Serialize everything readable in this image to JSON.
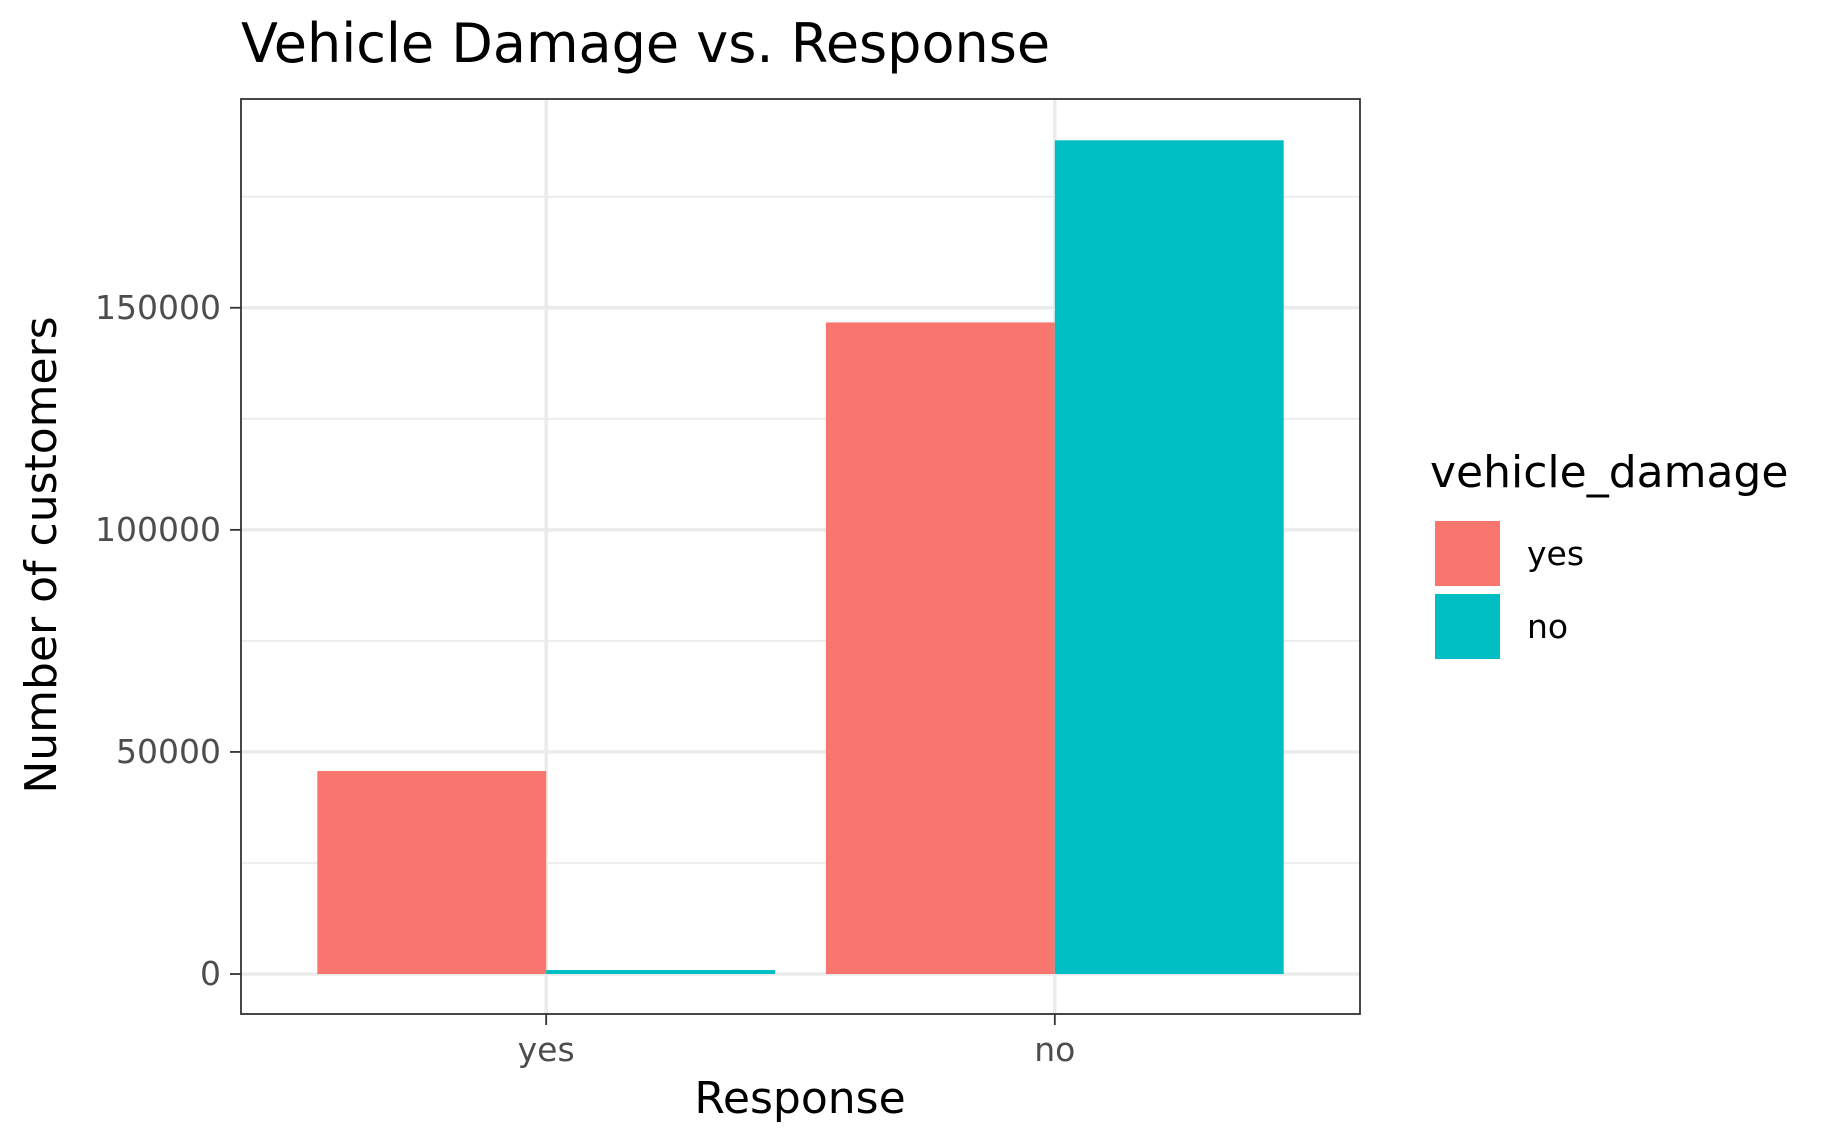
{
  "chart_data": {
    "type": "bar",
    "title": "Vehicle Damage vs. Response",
    "xlabel": "Response",
    "ylabel": "Number of customers",
    "categories": [
      "yes",
      "no"
    ],
    "series": [
      {
        "name": "yes",
        "values": [
          45700,
          146700
        ],
        "color": "#F8766D"
      },
      {
        "name": "no",
        "values": [
          900,
          187700
        ],
        "color": "#00BFC4"
      }
    ],
    "ylim": [
      -9000,
      197000
    ],
    "yticks": [
      0,
      50000,
      100000,
      150000
    ],
    "grid": true,
    "legend": {
      "title": "vehicle_damage",
      "position": "right"
    }
  }
}
